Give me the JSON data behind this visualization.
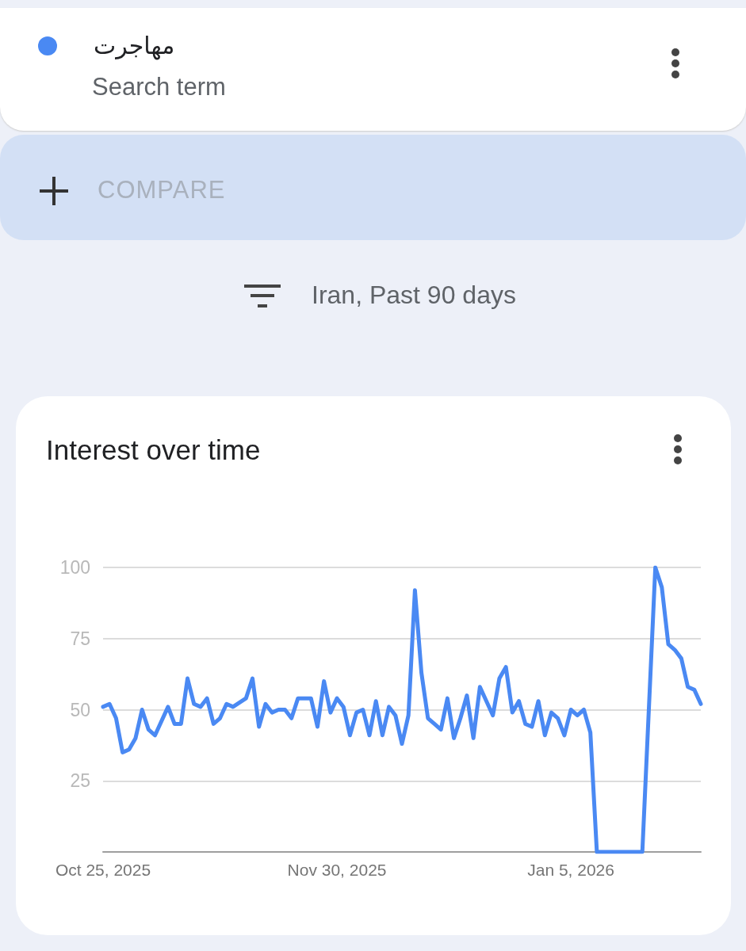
{
  "chart_data": {
    "type": "line",
    "title": "Interest over time",
    "subtitle": "Iran, Past 90 days",
    "annotations": [
      "Search term",
      "COMPARE"
    ],
    "x": [
      "2025-10-25",
      "2025-10-26",
      "2025-10-27",
      "2025-10-28",
      "2025-10-29",
      "2025-10-30",
      "2025-10-31",
      "2025-11-01",
      "2025-11-02",
      "2025-11-04",
      "2025-11-05",
      "2025-11-06",
      "2025-11-07",
      "2025-11-08",
      "2025-11-09",
      "2025-11-10",
      "2025-11-11",
      "2025-11-12",
      "2025-11-13",
      "2025-11-14",
      "2025-11-16",
      "2025-11-17",
      "2025-11-18",
      "2025-11-19",
      "2025-11-20",
      "2025-11-21",
      "2025-11-22",
      "2025-11-23",
      "2025-11-24",
      "2025-11-26",
      "2025-11-27",
      "2025-11-28",
      "2025-11-29",
      "2025-11-30",
      "2025-12-01",
      "2025-12-02",
      "2025-12-03",
      "2025-12-04",
      "2025-12-05",
      "2025-12-06",
      "2025-12-07",
      "2025-12-08",
      "2025-12-09",
      "2025-12-10",
      "2025-12-11",
      "2025-12-12",
      "2025-12-13",
      "2025-12-14",
      "2025-12-15",
      "2025-12-16",
      "2025-12-17",
      "2025-12-18",
      "2025-12-19",
      "2025-12-20",
      "2025-12-21",
      "2025-12-22",
      "2025-12-23",
      "2025-12-24",
      "2025-12-25",
      "2025-12-26",
      "2025-12-27",
      "2025-12-28",
      "2025-12-29",
      "2025-12-30",
      "2025-12-31",
      "2026-01-01",
      "2026-01-02",
      "2026-01-03",
      "2026-01-04",
      "2026-01-05",
      "2026-01-06",
      "2026-01-07",
      "2026-01-08",
      "2026-01-09",
      "2026-01-16",
      "2026-01-18",
      "2026-01-19",
      "2026-01-20",
      "2026-01-21",
      "2026-01-22",
      "2026-01-23",
      "2026-01-24",
      "2026-01-25"
    ],
    "series": [
      {
        "name": "مهاجرت",
        "color": "#4a89f3",
        "values": [
          51,
          52,
          47,
          35,
          36,
          40,
          50,
          43,
          41,
          51,
          45,
          45,
          61,
          52,
          51,
          54,
          45,
          47,
          52,
          51,
          54,
          61,
          44,
          52,
          49,
          50,
          50,
          47,
          54,
          54,
          44,
          60,
          49,
          54,
          51,
          41,
          49,
          50,
          41,
          53,
          41,
          51,
          48,
          38,
          48,
          92,
          63,
          47,
          45,
          43,
          54,
          40,
          47,
          55,
          40,
          58,
          53,
          48,
          61,
          65,
          49,
          53,
          45,
          44,
          53,
          41,
          49,
          47,
          41,
          50,
          48,
          50,
          42,
          0,
          0,
          100,
          93,
          73,
          71,
          68,
          58,
          57,
          52
        ]
      }
    ],
    "xlim": [
      "2025-10-25",
      "2026-01-25"
    ],
    "xticks": [
      {
        "value": "2025-10-25",
        "label": "Oct 25, 2025"
      },
      {
        "value": "2025-11-30",
        "label": "Nov 30, 2025"
      },
      {
        "value": "2026-01-05",
        "label": "Jan 5, 2026"
      }
    ],
    "ylim": [
      0,
      100
    ],
    "yticks": [
      25,
      50,
      75,
      100
    ],
    "grid": "y",
    "legend": "top",
    "marker": "none",
    "line_style": "solid"
  }
}
